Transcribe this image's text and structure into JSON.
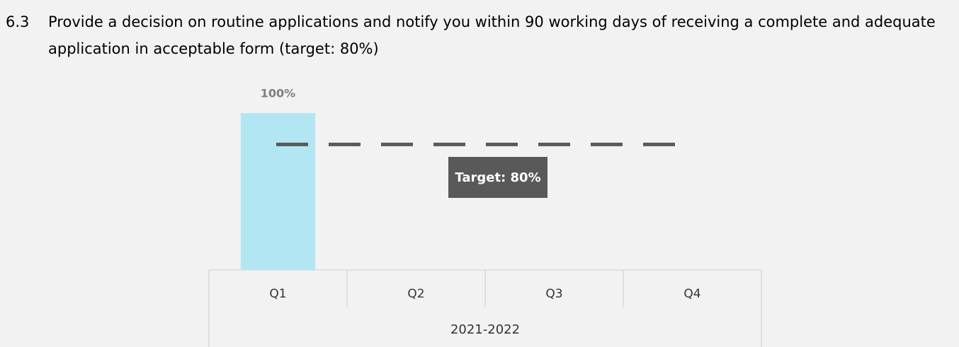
{
  "chart_data": {
    "type": "bar",
    "number": "6.3",
    "title": "Provide a decision on routine applications and notify you within 90 working days of receiving a complete and adequate application in acceptable form (target: 80%)",
    "categories": [
      "Q1",
      "Q2",
      "Q3",
      "Q4"
    ],
    "group_label": "2021-2022",
    "values": [
      100,
      null,
      null,
      null
    ],
    "value_labels": [
      "100%",
      null,
      null,
      null
    ],
    "color": "#b3e6f3",
    "ylim": [
      0,
      100
    ],
    "target": 80,
    "target_label": "Target: 80%",
    "target_color": "#595959"
  }
}
